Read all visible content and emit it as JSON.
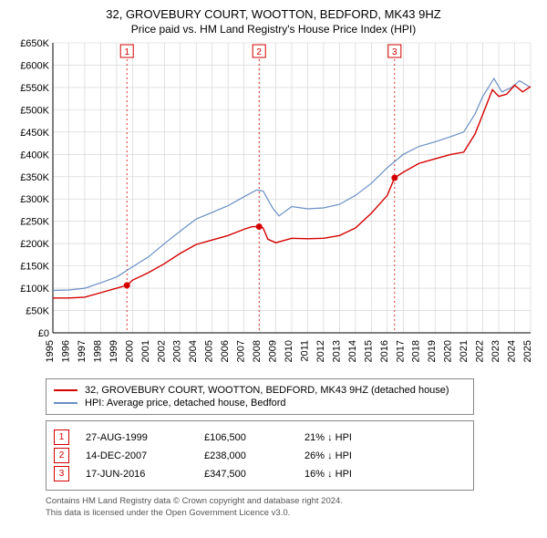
{
  "title_line1": "32, GROVEBURY COURT, WOOTTON, BEDFORD, MK43 9HZ",
  "title_line2": "Price paid vs. HM Land Registry's House Price Index (HPI)",
  "chart": {
    "type": "line",
    "background_color": "#ffffff",
    "grid_color": "#d0d0d0",
    "axis_color": "#000000",
    "text_color": "#000000",
    "label_fontsize": 11,
    "y": {
      "min": 0,
      "max": 650000,
      "tick_step": 50000,
      "ticks": [
        "£0",
        "£50K",
        "£100K",
        "£150K",
        "£200K",
        "£250K",
        "£300K",
        "£350K",
        "£400K",
        "£450K",
        "£500K",
        "£550K",
        "£600K",
        "£650K"
      ]
    },
    "x": {
      "min": 1995,
      "max": 2025,
      "tick_step": 1,
      "ticks": [
        "1995",
        "1996",
        "1997",
        "1998",
        "1999",
        "2000",
        "2001",
        "2002",
        "2003",
        "2004",
        "2005",
        "2006",
        "2007",
        "2008",
        "2009",
        "2010",
        "2011",
        "2012",
        "2013",
        "2014",
        "2015",
        "2016",
        "2017",
        "2018",
        "2019",
        "2020",
        "2021",
        "2022",
        "2023",
        "2024",
        "2025"
      ]
    },
    "series": [
      {
        "name": "price_paid",
        "color": "#d40000",
        "line_width": 1.4,
        "points": [
          [
            1995.0,
            78000
          ],
          [
            1996.0,
            78000
          ],
          [
            1997.0,
            80000
          ],
          [
            1998.0,
            90000
          ],
          [
            1999.0,
            100000
          ],
          [
            1999.65,
            106500
          ],
          [
            2000.0,
            118000
          ],
          [
            2001.0,
            135000
          ],
          [
            2002.0,
            155000
          ],
          [
            2003.0,
            178000
          ],
          [
            2004.0,
            198000
          ],
          [
            2005.0,
            208000
          ],
          [
            2006.0,
            218000
          ],
          [
            2007.0,
            232000
          ],
          [
            2007.5,
            238000
          ],
          [
            2007.95,
            238000
          ],
          [
            2008.2,
            235000
          ],
          [
            2008.5,
            210000
          ],
          [
            2009.0,
            202000
          ],
          [
            2010.0,
            212000
          ],
          [
            2011.0,
            211000
          ],
          [
            2012.0,
            212000
          ],
          [
            2013.0,
            218000
          ],
          [
            2014.0,
            235000
          ],
          [
            2015.0,
            268000
          ],
          [
            2016.0,
            308000
          ],
          [
            2016.46,
            347500
          ],
          [
            2017.0,
            360000
          ],
          [
            2018.0,
            380000
          ],
          [
            2019.0,
            390000
          ],
          [
            2020.0,
            400000
          ],
          [
            2020.8,
            405000
          ],
          [
            2021.5,
            445000
          ],
          [
            2022.0,
            490000
          ],
          [
            2022.6,
            545000
          ],
          [
            2023.0,
            530000
          ],
          [
            2023.5,
            535000
          ],
          [
            2024.0,
            555000
          ],
          [
            2024.5,
            540000
          ],
          [
            2025.0,
            552000
          ]
        ]
      },
      {
        "name": "hpi",
        "color": "#6a8fc5",
        "line_width": 1.2,
        "points": [
          [
            1995.0,
            95000
          ],
          [
            1996.0,
            96000
          ],
          [
            1997.0,
            100000
          ],
          [
            1998.0,
            112000
          ],
          [
            1999.0,
            125000
          ],
          [
            2000.0,
            148000
          ],
          [
            2001.0,
            170000
          ],
          [
            2002.0,
            200000
          ],
          [
            2003.0,
            228000
          ],
          [
            2004.0,
            255000
          ],
          [
            2005.0,
            270000
          ],
          [
            2006.0,
            285000
          ],
          [
            2007.0,
            305000
          ],
          [
            2007.8,
            320000
          ],
          [
            2008.2,
            318000
          ],
          [
            2008.8,
            280000
          ],
          [
            2009.2,
            262000
          ],
          [
            2010.0,
            283000
          ],
          [
            2011.0,
            278000
          ],
          [
            2012.0,
            280000
          ],
          [
            2013.0,
            288000
          ],
          [
            2014.0,
            308000
          ],
          [
            2015.0,
            335000
          ],
          [
            2016.0,
            370000
          ],
          [
            2017.0,
            400000
          ],
          [
            2018.0,
            418000
          ],
          [
            2019.0,
            428000
          ],
          [
            2020.0,
            440000
          ],
          [
            2020.8,
            450000
          ],
          [
            2021.5,
            490000
          ],
          [
            2022.0,
            530000
          ],
          [
            2022.7,
            570000
          ],
          [
            2023.2,
            540000
          ],
          [
            2023.8,
            550000
          ],
          [
            2024.3,
            565000
          ],
          [
            2025.0,
            550000
          ]
        ]
      }
    ],
    "sale_markers": [
      {
        "n": "1",
        "year": 1999.65,
        "price": 106500
      },
      {
        "n": "2",
        "year": 2007.95,
        "price": 238000
      },
      {
        "n": "3",
        "year": 2016.46,
        "price": 347500
      }
    ]
  },
  "legend": {
    "a_color": "#d40000",
    "a_label": "32, GROVEBURY COURT, WOOTTON, BEDFORD, MK43 9HZ (detached house)",
    "b_color": "#6a8fc5",
    "b_label": "HPI: Average price, detached house, Bedford"
  },
  "sales": [
    {
      "n": "1",
      "date": "27-AUG-1999",
      "price": "£106,500",
      "delta": "21% ↓ HPI"
    },
    {
      "n": "2",
      "date": "14-DEC-2007",
      "price": "£238,000",
      "delta": "26% ↓ HPI"
    },
    {
      "n": "3",
      "date": "17-JUN-2016",
      "price": "£347,500",
      "delta": "16% ↓ HPI"
    }
  ],
  "footer_line1": "Contains HM Land Registry data © Crown copyright and database right 2024.",
  "footer_line2": "This data is licensed under the Open Government Licence v3.0."
}
